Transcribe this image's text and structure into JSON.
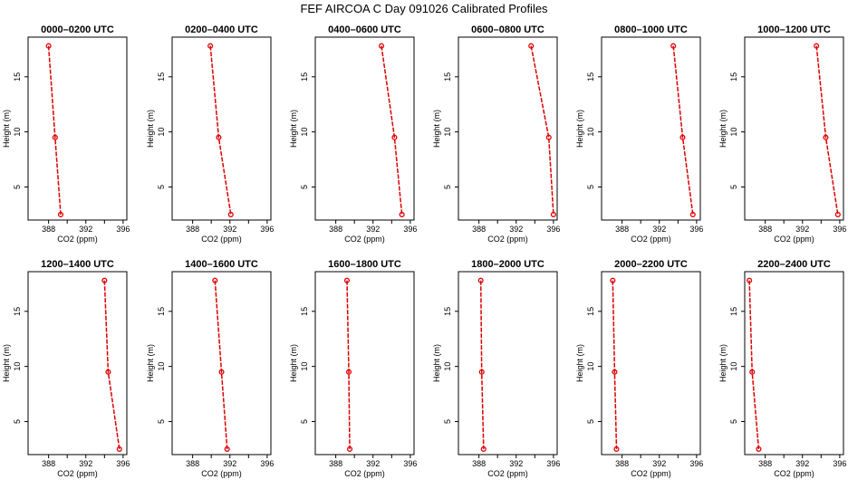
{
  "title": "FEF AIRCOA C  Day 091026  Calibrated Profiles",
  "chart_data": {
    "type": "line",
    "title": "FEF AIRCOA C  Day 091026  Calibrated Profiles",
    "xlabel": "CO2 (ppm)",
    "ylabel": "Height (m)",
    "xlim": [
      385.8,
      396.4
    ],
    "ylim": [
      2.0,
      18.6
    ],
    "xticks": [
      "388",
      "392",
      "396"
    ],
    "yticks": [
      "5",
      "10",
      "15"
    ],
    "line_color": "#dd0000",
    "panels": [
      {
        "title": "0000–0200 UTC",
        "points": [
          {
            "co2": 388.0,
            "height": 17.8
          },
          {
            "co2": 388.7,
            "height": 9.5
          },
          {
            "co2": 389.3,
            "height": 2.5
          }
        ]
      },
      {
        "title": "0200–0400 UTC",
        "points": [
          {
            "co2": 389.9,
            "height": 17.8
          },
          {
            "co2": 390.8,
            "height": 9.5
          },
          {
            "co2": 392.1,
            "height": 2.5
          }
        ]
      },
      {
        "title": "0400–0600 UTC",
        "points": [
          {
            "co2": 392.9,
            "height": 17.8
          },
          {
            "co2": 394.3,
            "height": 9.5
          },
          {
            "co2": 395.1,
            "height": 2.5
          }
        ]
      },
      {
        "title": "0600–0800 UTC",
        "points": [
          {
            "co2": 393.6,
            "height": 17.8
          },
          {
            "co2": 395.5,
            "height": 9.5
          },
          {
            "co2": 396.0,
            "height": 2.5
          }
        ]
      },
      {
        "title": "0800–1000 UTC",
        "points": [
          {
            "co2": 393.5,
            "height": 17.8
          },
          {
            "co2": 394.5,
            "height": 9.5
          },
          {
            "co2": 395.6,
            "height": 2.5
          }
        ]
      },
      {
        "title": "1000–1200 UTC",
        "points": [
          {
            "co2": 393.5,
            "height": 17.8
          },
          {
            "co2": 394.5,
            "height": 9.5
          },
          {
            "co2": 395.8,
            "height": 2.5
          }
        ]
      },
      {
        "title": "1200–1400 UTC",
        "points": [
          {
            "co2": 394.0,
            "height": 17.8
          },
          {
            "co2": 394.4,
            "height": 9.5
          },
          {
            "co2": 395.6,
            "height": 2.5
          }
        ]
      },
      {
        "title": "1400–1600 UTC",
        "points": [
          {
            "co2": 390.4,
            "height": 17.8
          },
          {
            "co2": 391.1,
            "height": 9.5
          },
          {
            "co2": 391.7,
            "height": 2.5
          }
        ]
      },
      {
        "title": "1600–1800 UTC",
        "points": [
          {
            "co2": 389.2,
            "height": 17.8
          },
          {
            "co2": 389.4,
            "height": 9.5
          },
          {
            "co2": 389.5,
            "height": 2.5
          }
        ]
      },
      {
        "title": "1800–2000 UTC",
        "points": [
          {
            "co2": 388.2,
            "height": 17.8
          },
          {
            "co2": 388.3,
            "height": 9.5
          },
          {
            "co2": 388.5,
            "height": 2.5
          }
        ]
      },
      {
        "title": "2000–2200 UTC",
        "points": [
          {
            "co2": 387.0,
            "height": 17.8
          },
          {
            "co2": 387.2,
            "height": 9.5
          },
          {
            "co2": 387.4,
            "height": 2.5
          }
        ]
      },
      {
        "title": "2200–2400 UTC",
        "points": [
          {
            "co2": 386.3,
            "height": 17.8
          },
          {
            "co2": 386.6,
            "height": 9.5
          },
          {
            "co2": 387.3,
            "height": 2.5
          }
        ]
      }
    ]
  }
}
